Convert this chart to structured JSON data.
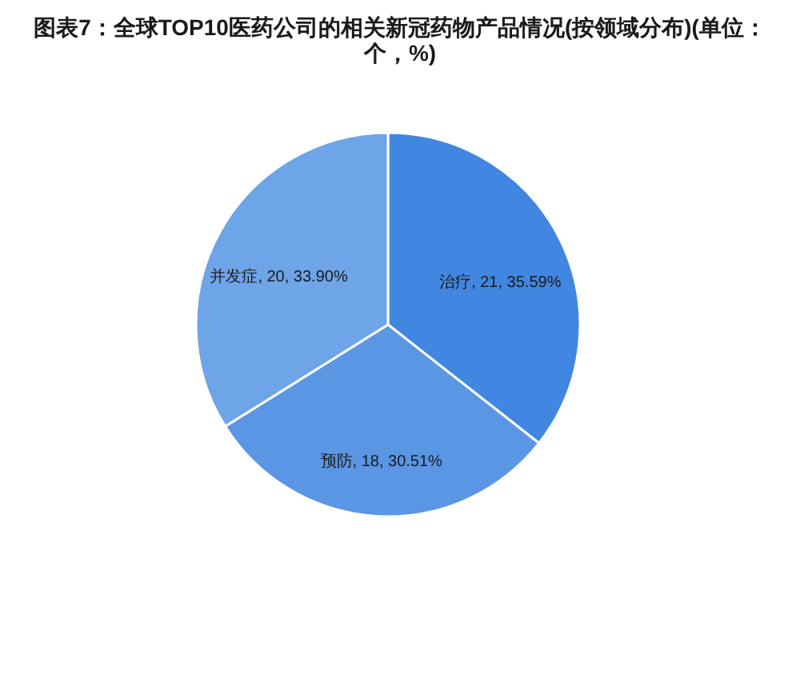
{
  "chart_data": {
    "type": "pie",
    "title": "图表7：全球TOP10医药公司的相关新冠药物产品情况(按领域分布)(单位：个，%)",
    "categories": [
      "治疗",
      "预防",
      "并发症"
    ],
    "values": [
      21,
      18,
      20
    ],
    "colors": [
      "#4186e0",
      "#5a96e4",
      "#6ea4e8"
    ],
    "value_labels": [
      "21, 35.59%",
      "18, 30.51%",
      "20, 33.90%"
    ]
  }
}
